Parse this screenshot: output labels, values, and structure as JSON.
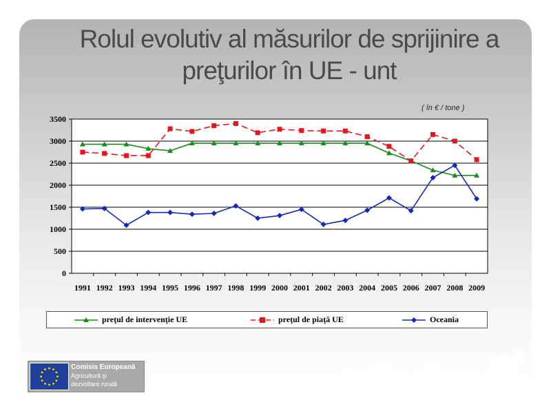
{
  "title": {
    "line1": "Rolul evolutiv al măsurilor de sprijinire a",
    "line2": "preţurilor în UE - unt"
  },
  "unit_note": "( în  € / tone )",
  "logo": {
    "org": "Comisia Europeană",
    "dept_line1": "Agricultură şi",
    "dept_line2": "dezvoltare rurală"
  },
  "colors": {
    "interventie": "#1a8a1a",
    "piata": "#e8141c",
    "oceania": "#1428b4",
    "plot_bg": "#ffffff",
    "grid": "#000000"
  },
  "chart_data": {
    "type": "line",
    "categories": [
      "1991",
      "1992",
      "1993",
      "1994",
      "1995",
      "1996",
      "1997",
      "1998",
      "1999",
      "2000",
      "2001",
      "2002",
      "2003",
      "2004",
      "2005",
      "2006",
      "2007",
      "2008",
      "2009"
    ],
    "ylim": [
      0,
      3500
    ],
    "yticks": [
      "0",
      "500",
      "1000",
      "1500",
      "2000",
      "2500",
      "3000",
      "3500"
    ],
    "grid": true,
    "legend_position": "bottom",
    "series": [
      {
        "name": "preţul de intervenţie UE",
        "key": "interventie",
        "marker": "triangle",
        "dash": "solid",
        "values": [
          2928,
          2928,
          2928,
          2830,
          2782,
          2952,
          2952,
          2952,
          2952,
          2952,
          2952,
          2952,
          2952,
          2952,
          2728,
          2552,
          2340,
          2220,
          2220
        ]
      },
      {
        "name": "preţul de piaţă UE",
        "key": "piata",
        "marker": "square",
        "dash": "dashed",
        "values": [
          2750,
          2720,
          2670,
          2670,
          3280,
          3220,
          3350,
          3400,
          3190,
          3270,
          3240,
          3230,
          3230,
          3100,
          2880,
          2550,
          3150,
          3000,
          2580
        ]
      },
      {
        "name": "Oceania",
        "key": "oceania",
        "marker": "diamond",
        "dash": "solid",
        "values": [
          1460,
          1470,
          1090,
          1380,
          1380,
          1340,
          1360,
          1530,
          1250,
          1310,
          1450,
          1110,
          1200,
          1430,
          1710,
          1420,
          2170,
          2450,
          1690
        ]
      }
    ]
  }
}
